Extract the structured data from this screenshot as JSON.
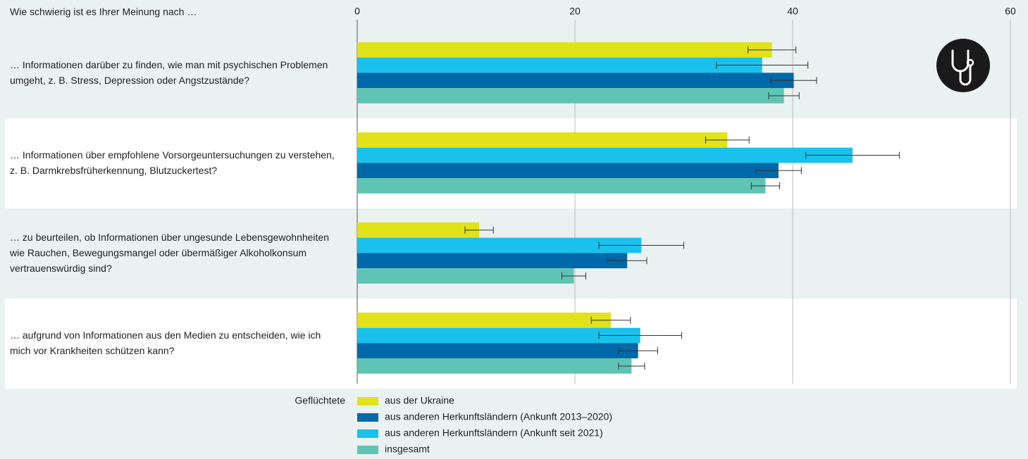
{
  "chart_data": {
    "type": "bar",
    "orientation": "horizontal",
    "title": "Wie schwierig ist es Ihrer Meinung nach …",
    "categories": [
      "… Informationen darüber zu finden, wie man mit psychischen Problemen umgeht, z. B. Stress, Depression oder Angstzustände?",
      "… Informationen über empfohlene Vorsorgeuntersuchungen zu verstehen, z. B. Darmkrebsfrüherkennung, Blutzuckertest?",
      "… zu beurteilen, ob Informationen über ungesunde Lebensgewohnheiten wie Rauchen, Bewegungsmangel oder übermäßiger Alkoholkonsum vertrauenswürdig sind?",
      "… aufgrund von Informationen aus den Medien zu entscheiden, wie ich mich vor Krankheiten schützen kann?"
    ],
    "legend_title": "Geflüchtete",
    "series": [
      {
        "name": "aus der Ukraine",
        "color": "#e1e21a",
        "values": [
          38.1,
          34.0,
          11.2,
          23.3
        ],
        "errors": [
          2.2,
          2.0,
          1.3,
          1.8
        ]
      },
      {
        "name": "aus anderen Herkunftsländern (Ankunft 2013–2020)",
        "color": "#0069aa",
        "values": [
          40.1,
          38.7,
          24.8,
          25.8
        ],
        "errors": [
          2.1,
          2.1,
          1.8,
          1.8
        ]
      },
      {
        "name": "aus anderen Herkunftsländern (Ankunft seit 2021)",
        "color": "#19c1ec",
        "values": [
          37.2,
          45.5,
          26.1,
          26.0
        ],
        "errors": [
          4.2,
          4.3,
          3.9,
          3.8
        ]
      },
      {
        "name": "insgesamt",
        "color": "#5fc4b4",
        "values": [
          39.2,
          37.5,
          19.9,
          25.2
        ],
        "errors": [
          1.4,
          1.3,
          1.1,
          1.2
        ]
      }
    ],
    "xlim": [
      0,
      60
    ],
    "xticks": [
      0,
      20,
      40,
      60
    ],
    "grid": true
  }
}
